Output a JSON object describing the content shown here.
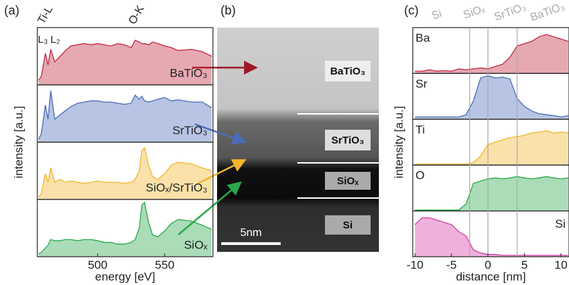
{
  "chart_data": [
    {
      "type": "area",
      "panel_label": "(a)",
      "xlabel": "energy [eV]",
      "ylabel": "intensity [a.u.]",
      "xlim": [
        455,
        586
      ],
      "xticks": [
        500,
        550
      ],
      "ylim": [
        0,
        1
      ],
      "annotations": [
        "Ti-L",
        "O-K",
        "L₃",
        "L₂"
      ],
      "x": [
        456,
        458,
        461,
        463,
        465,
        468,
        472,
        476,
        480,
        485,
        490,
        495,
        500,
        505,
        510,
        515,
        520,
        525,
        528,
        531,
        533,
        535,
        538,
        541,
        545,
        550,
        555,
        560,
        570,
        578,
        585
      ],
      "series": [
        {
          "name": "BaTiO₃",
          "color": "#c0283c",
          "values": [
            0.08,
            0.15,
            0.55,
            0.35,
            0.62,
            0.4,
            0.5,
            0.6,
            0.68,
            0.7,
            0.72,
            0.7,
            0.72,
            0.7,
            0.68,
            0.72,
            0.7,
            0.65,
            0.78,
            0.75,
            0.72,
            0.72,
            0.7,
            0.75,
            0.72,
            0.68,
            0.65,
            0.6,
            0.62,
            0.58,
            0.5
          ]
        },
        {
          "name": "SrTiO₃",
          "color": "#4a6cb8",
          "values": [
            0.05,
            0.15,
            0.65,
            0.4,
            0.9,
            0.4,
            0.48,
            0.55,
            0.62,
            0.68,
            0.7,
            0.72,
            0.72,
            0.7,
            0.7,
            0.68,
            0.66,
            0.68,
            0.82,
            0.75,
            0.8,
            0.72,
            0.7,
            0.72,
            0.75,
            0.78,
            0.72,
            0.74,
            0.7,
            0.7,
            0.6
          ]
        },
        {
          "name": "SiOₓ/SrTiO₃",
          "color": "#f2b52a",
          "values": [
            0.05,
            0.1,
            0.45,
            0.3,
            0.55,
            0.3,
            0.35,
            0.3,
            0.32,
            0.3,
            0.28,
            0.3,
            0.32,
            0.3,
            0.3,
            0.3,
            0.28,
            0.3,
            0.35,
            0.5,
            0.85,
            0.9,
            0.6,
            0.4,
            0.35,
            0.45,
            0.6,
            0.65,
            0.62,
            0.55,
            0.5
          ]
        },
        {
          "name": "SiOₓ",
          "color": "#2aa84a",
          "values": [
            0.05,
            0.08,
            0.15,
            0.2,
            0.3,
            0.28,
            0.28,
            0.3,
            0.3,
            0.28,
            0.3,
            0.3,
            0.28,
            0.25,
            0.25,
            0.22,
            0.22,
            0.25,
            0.3,
            0.5,
            0.9,
            0.95,
            0.6,
            0.38,
            0.35,
            0.45,
            0.58,
            0.65,
            0.62,
            0.55,
            0.48
          ]
        }
      ]
    },
    {
      "type": "area",
      "panel_label": "(c)",
      "xlabel": "distance [nm]",
      "ylabel": "intensity [a.u.]",
      "xlim": [
        -10.3,
        11.1
      ],
      "xticks": [
        -10,
        -5,
        0,
        5,
        10
      ],
      "ylim": [
        0,
        1
      ],
      "annotations": [
        "Si",
        "SiOₓ",
        "SrTiO₃",
        "BaTiO₃"
      ],
      "vlines": [
        -2.5,
        0,
        4
      ],
      "x": [
        -10,
        -9,
        -8,
        -7,
        -6,
        -5,
        -4,
        -3,
        -2,
        -1,
        0,
        1,
        2,
        3,
        4,
        5,
        6,
        7,
        8,
        9,
        10,
        11
      ],
      "series": [
        {
          "name": "Ba",
          "color": "#c0283c",
          "values": [
            0.05,
            0.05,
            0.08,
            0.05,
            0.06,
            0.05,
            0.1,
            0.08,
            0.1,
            0.12,
            0.1,
            0.15,
            0.2,
            0.35,
            0.6,
            0.65,
            0.7,
            0.8,
            0.85,
            0.8,
            0.75,
            0.7
          ]
        },
        {
          "name": "Sr",
          "color": "#4a6cb8",
          "values": [
            0.05,
            0.05,
            0.05,
            0.05,
            0.05,
            0.05,
            0.05,
            0.1,
            0.4,
            0.9,
            0.95,
            0.9,
            0.92,
            0.88,
            0.45,
            0.28,
            0.18,
            0.12,
            0.1,
            0.08,
            0.05,
            0.08
          ]
        },
        {
          "name": "Ti",
          "color": "#f2b52a",
          "values": [
            0.02,
            0.02,
            0.02,
            0.02,
            0.02,
            0.02,
            0.02,
            0.02,
            0.05,
            0.2,
            0.45,
            0.5,
            0.55,
            0.6,
            0.62,
            0.65,
            0.7,
            0.72,
            0.75,
            0.7,
            0.72,
            0.7
          ]
        },
        {
          "name": "O",
          "color": "#2aa84a",
          "values": [
            0.02,
            0.02,
            0.02,
            0.02,
            0.02,
            0.02,
            0.02,
            0.15,
            0.6,
            0.65,
            0.7,
            0.72,
            0.7,
            0.72,
            0.75,
            0.72,
            0.7,
            0.72,
            0.75,
            0.72,
            0.7,
            0.72
          ]
        },
        {
          "name": "Si",
          "color": "#d43ca8",
          "values": [
            0.7,
            0.85,
            0.85,
            0.8,
            0.75,
            0.7,
            0.55,
            0.45,
            0.15,
            0.08,
            0.05,
            0.05,
            0.03,
            0.03,
            0.03,
            0.03,
            0.03,
            0.03,
            0.03,
            0.03,
            0.03,
            0.03
          ]
        }
      ]
    }
  ],
  "image_panel": {
    "panel_label": "(b)",
    "regions": [
      "BaTiO₃",
      "SrTiO₃",
      "SiOₓ",
      "Si"
    ],
    "scale_bar": "5nm"
  }
}
